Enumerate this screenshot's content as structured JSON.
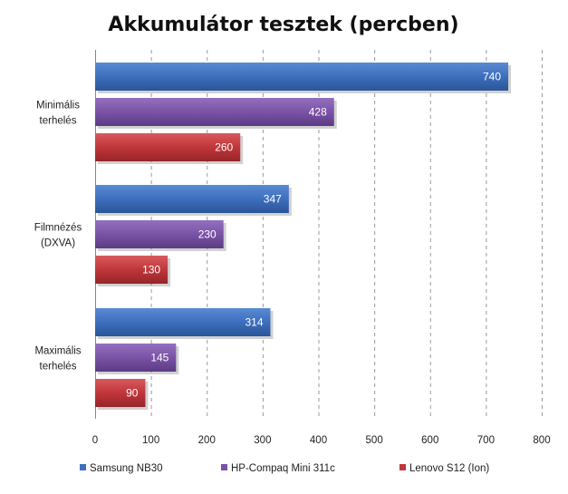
{
  "chart_data": {
    "type": "bar",
    "orientation": "horizontal",
    "title": "Akkumulátor tesztek (percben)",
    "categories": [
      [
        "Minimális",
        "terhelés"
      ],
      [
        "Filmnézés",
        "(DXVA)"
      ],
      [
        "Maximális",
        "terhelés"
      ]
    ],
    "series": [
      {
        "name": "Samsung NB30",
        "color": "#3d6fbd",
        "values": [
          740,
          347,
          314
        ]
      },
      {
        "name": "HP-Compaq Mini 311c",
        "color": "#7a52a6",
        "values": [
          428,
          230,
          145
        ]
      },
      {
        "name": "Lenovo S12 (Ion)",
        "color": "#c0363a",
        "values": [
          260,
          130,
          90
        ]
      }
    ],
    "xlim": [
      0,
      800
    ],
    "xticks": [
      0,
      100,
      200,
      300,
      400,
      500,
      600,
      700,
      800
    ],
    "grid": true,
    "legend_position": "bottom"
  }
}
